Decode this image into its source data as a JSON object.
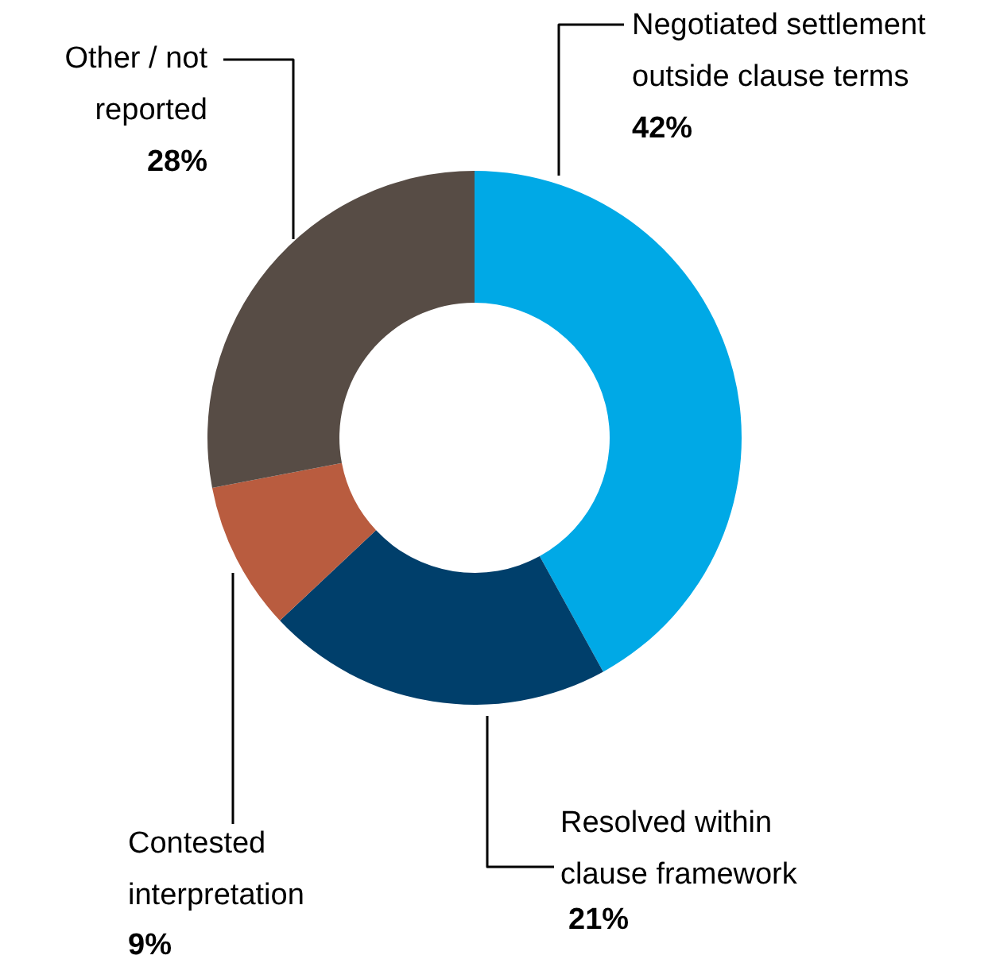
{
  "chart_data": {
    "type": "donut",
    "categories": [
      "Negotiated settlement\noutside clause terms",
      "Resolved within\nclause framework",
      "Contested\ninterpretation",
      "Other / not\nreported"
    ],
    "values": [
      42,
      21,
      9,
      28
    ],
    "colors": [
      "#00a9e6",
      "#003f6b",
      "#b95c3f",
      "#574c45"
    ],
    "value_labels": [
      "42%",
      "21%",
      "9%",
      "28%"
    ]
  }
}
